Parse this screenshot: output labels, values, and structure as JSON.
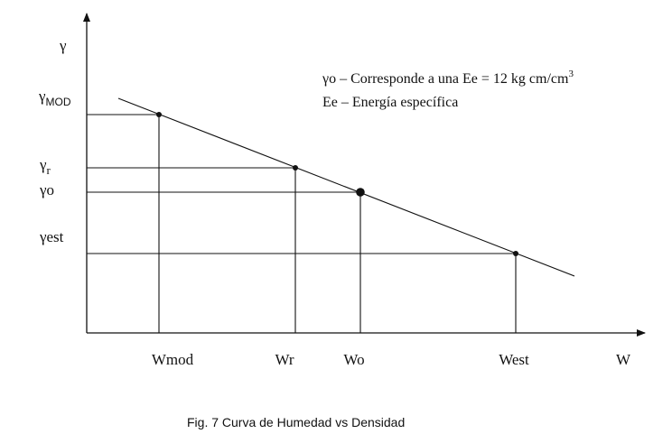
{
  "figure": {
    "caption": "Fig. 7  Curva de Humedad vs Densidad",
    "axes": {
      "y_label": "γ",
      "x_label": "W"
    },
    "legend": {
      "line1_main": "γo – Corresponde a una Ee = 12 kg cm/cm",
      "line1_sup": "3",
      "line2": "Ee – Energía específica"
    },
    "y_labels": [
      {
        "main": "γ",
        "sub": "MOD"
      },
      {
        "main": "γ",
        "sub": "r"
      },
      {
        "main": "γo",
        "sub": ""
      },
      {
        "main": "γest",
        "sub": ""
      }
    ],
    "x_labels": [
      "Wmod",
      "Wr",
      "Wo",
      "West"
    ],
    "points": [
      {
        "name": "MOD",
        "emphasis": false
      },
      {
        "name": "r",
        "emphasis": false
      },
      {
        "name": "o",
        "emphasis": true
      },
      {
        "name": "est",
        "emphasis": false
      }
    ]
  }
}
